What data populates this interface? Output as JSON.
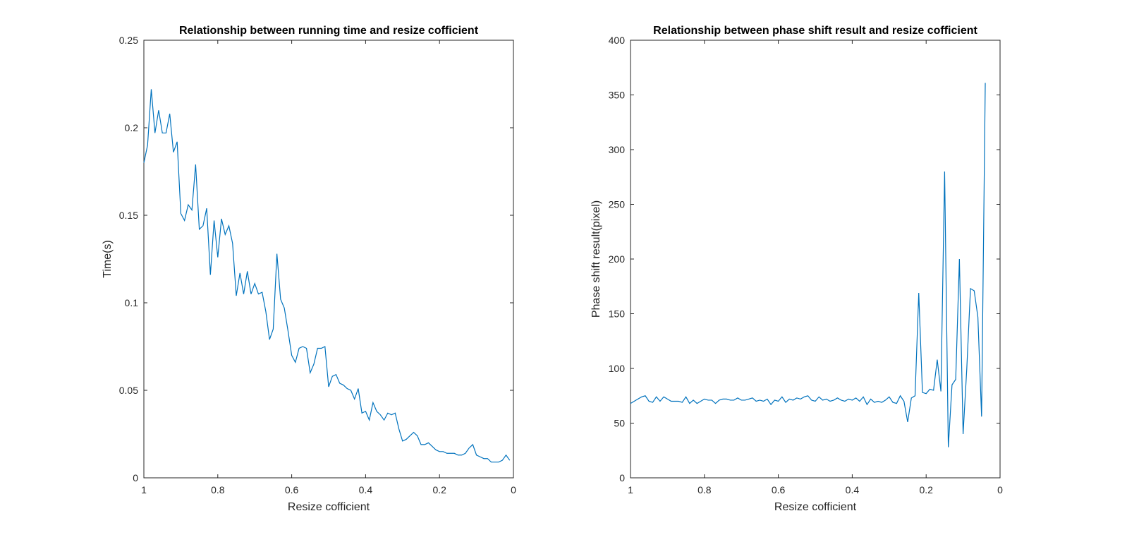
{
  "chart_data": [
    {
      "type": "line",
      "title": "Relationship between running time and resize cofficient",
      "xlabel": "Resize cofficient",
      "ylabel": "Time(s)",
      "xlim": [
        1,
        0
      ],
      "ylim": [
        0,
        0.25
      ],
      "x_reversed": true,
      "grid": false,
      "xticks": [
        "1",
        "0.8",
        "0.6",
        "0.4",
        "0.2",
        "0"
      ],
      "yticks": [
        "0",
        "0.05",
        "0.1",
        "0.15",
        "0.2",
        "0.25"
      ],
      "line_color": "#0072BD",
      "series": [
        {
          "x_start": 1.0,
          "x_step": 0.01,
          "values": [
            0.18,
            0.19,
            0.222,
            0.197,
            0.21,
            0.197,
            0.197,
            0.208,
            0.186,
            0.192,
            0.151,
            0.147,
            0.156,
            0.153,
            0.179,
            0.142,
            0.144,
            0.154,
            0.116,
            0.147,
            0.126,
            0.148,
            0.139,
            0.144,
            0.134,
            0.104,
            0.117,
            0.105,
            0.118,
            0.105,
            0.111,
            0.105,
            0.106,
            0.095,
            0.079,
            0.085,
            0.128,
            0.102,
            0.097,
            0.084,
            0.07,
            0.066,
            0.074,
            0.075,
            0.074,
            0.06,
            0.065,
            0.074,
            0.074,
            0.075,
            0.052,
            0.058,
            0.059,
            0.054,
            0.053,
            0.051,
            0.05,
            0.045,
            0.051,
            0.037,
            0.038,
            0.033,
            0.043,
            0.038,
            0.036,
            0.033,
            0.037,
            0.036,
            0.037,
            0.028,
            0.021,
            0.022,
            0.024,
            0.026,
            0.024,
            0.019,
            0.019,
            0.02,
            0.018,
            0.016,
            0.015,
            0.015,
            0.014,
            0.014,
            0.014,
            0.013,
            0.013,
            0.014,
            0.017,
            0.019,
            0.013,
            0.012,
            0.011,
            0.011,
            0.009,
            0.009,
            0.009,
            0.01,
            0.013,
            0.01
          ]
        }
      ]
    },
    {
      "type": "line",
      "title": "Relationship between phase shift result and resize cofficient",
      "xlabel": "Resize cofficient",
      "ylabel": "Phase shift result(pixel)",
      "xlim": [
        1,
        0
      ],
      "ylim": [
        0,
        400
      ],
      "x_reversed": true,
      "grid": false,
      "xticks": [
        "1",
        "0.8",
        "0.6",
        "0.4",
        "0.2",
        "0"
      ],
      "yticks": [
        "0",
        "50",
        "100",
        "150",
        "200",
        "250",
        "300",
        "350",
        "400"
      ],
      "line_color": "#0072BD",
      "series": [
        {
          "x_start": 1.0,
          "x_step": 0.01,
          "values": [
            68,
            70,
            72,
            74,
            75,
            70,
            69,
            74,
            70,
            74,
            72,
            70,
            70,
            70,
            69,
            74,
            68,
            71,
            68,
            70,
            72,
            71,
            71,
            68,
            71,
            72,
            72,
            71,
            71,
            73,
            71,
            71,
            72,
            73,
            70,
            71,
            70,
            72,
            67,
            71,
            70,
            74,
            69,
            72,
            71,
            73,
            72,
            74,
            75,
            71,
            70,
            74,
            71,
            72,
            70,
            71,
            73,
            71,
            70,
            72,
            71,
            73,
            70,
            74,
            67,
            72,
            69,
            70,
            69,
            71,
            74,
            69,
            68,
            75,
            70,
            51,
            73,
            75,
            169,
            78,
            77,
            81,
            80,
            108,
            79,
            280,
            28,
            85,
            90,
            200,
            40,
            100,
            173,
            171,
            147,
            56,
            361
          ]
        }
      ]
    }
  ]
}
